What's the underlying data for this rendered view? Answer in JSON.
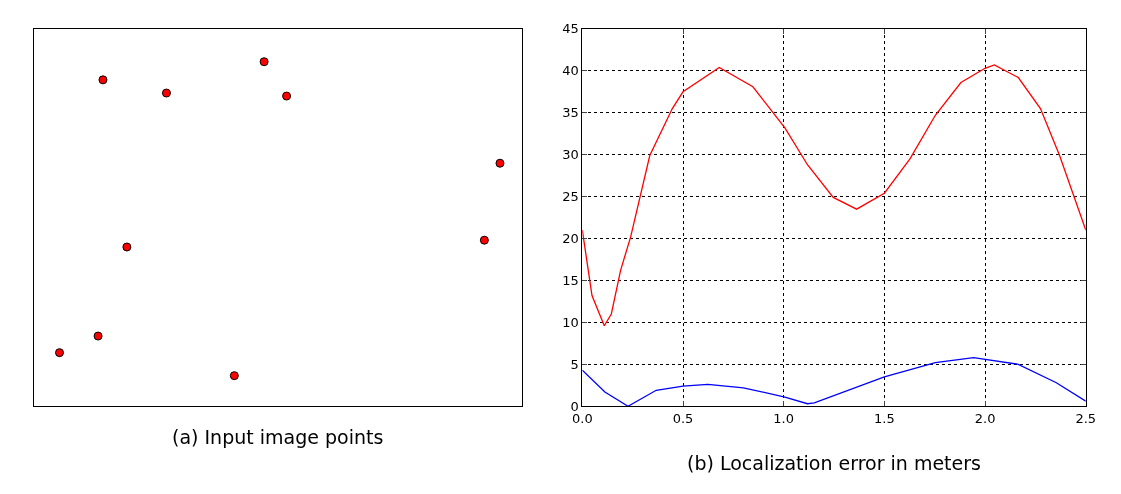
{
  "chart_data": [
    {
      "type": "other",
      "title": "(a) Input image points"
    },
    {
      "type": "line",
      "title": "(b) Localization error in meters",
      "xlim": [
        0,
        2.5
      ],
      "ylim": [
        0,
        45
      ],
      "xticks": [
        {
          "value": 0,
          "label": "0.0"
        },
        0.5,
        {
          "value": 1,
          "label": "1.0"
        },
        1.5,
        {
          "value": 2,
          "label": "2.0"
        },
        2.5
      ],
      "yticks": [
        0,
        5,
        10,
        15,
        20,
        25,
        30,
        35,
        40,
        45
      ],
      "grid": true,
      "marker": "none",
      "line_style": "solid",
      "series": [
        {
          "color": "#ff0000",
          "x": [
            0,
            0.048,
            0.109,
            0.144,
            0.19,
            0.24,
            0.335,
            0.447,
            0.5,
            0.68,
            0.847,
            1.006,
            1.118,
            1.246,
            1.362,
            1.5,
            1.627,
            1.753,
            1.88,
            2.0,
            2.046,
            2.165,
            2.275,
            2.37,
            2.5
          ],
          "values": [
            21.0,
            13.2,
            9.6,
            11.0,
            16.2,
            20.2,
            29.9,
            35.5,
            37.5,
            40.4,
            38.1,
            33.2,
            28.8,
            24.9,
            23.5,
            25.4,
            29.5,
            34.7,
            38.6,
            40.3,
            40.7,
            39.2,
            35.5,
            29.9,
            21.0
          ]
        },
        {
          "color": "#0000ff",
          "x": [
            0,
            0.112,
            0.227,
            0.367,
            0.5,
            0.623,
            0.8,
            1.006,
            1.118,
            1.152,
            1.5,
            1.753,
            1.943,
            2.165,
            2.354,
            2.5
          ],
          "values": [
            4.3,
            1.7,
            0,
            1.9,
            2.4,
            2.6,
            2.2,
            1.1,
            0.3,
            0.4,
            3.5,
            5.2,
            5.8,
            5.0,
            2.8,
            0.6
          ]
        }
      ]
    }
  ]
}
